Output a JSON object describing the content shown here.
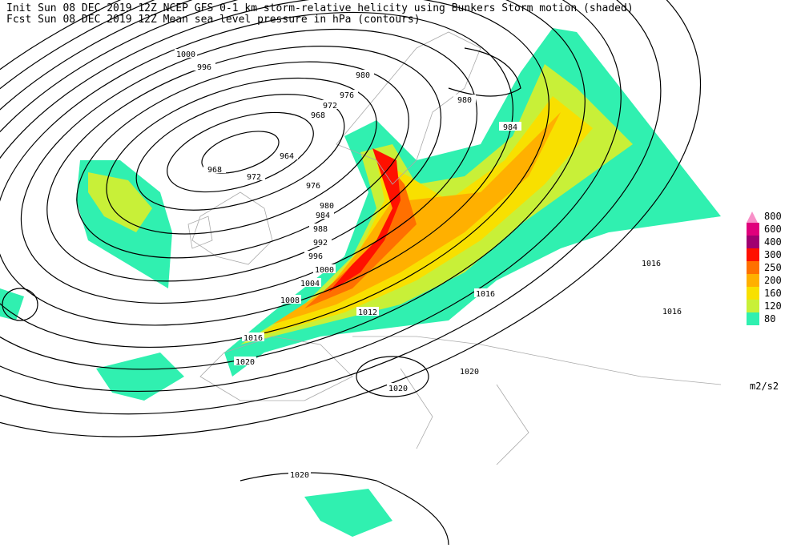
{
  "header": {
    "line1": "Init  Sun 08 DEC 2019 12Z  NCEP GFS 0-1 km storm-relative helicity using Bunkers Storm motion (shaded)",
    "line2": "Fcst Sun 08 DEC 2019 12Z  Mean sea level pressure in hPa (contours)"
  },
  "legend": {
    "units": "m2/s2",
    "levels": [
      {
        "label": "800",
        "color": "#f890c8"
      },
      {
        "label": "600",
        "color": "#e0007c"
      },
      {
        "label": "400",
        "color": "#a00070"
      },
      {
        "label": "300",
        "color": "#ff1000"
      },
      {
        "label": "250",
        "color": "#ff7000"
      },
      {
        "label": "200",
        "color": "#ffb000"
      },
      {
        "label": "160",
        "color": "#f8e000"
      },
      {
        "label": "120",
        "color": "#c8f038"
      },
      {
        "label": "80",
        "color": "#30f0b0"
      }
    ]
  },
  "contour_labels": [
    "1000",
    "996",
    "980",
    "976",
    "972",
    "968",
    "964",
    "968",
    "972",
    "976",
    "980",
    "984",
    "988",
    "992",
    "996",
    "1000",
    "1004",
    "1008",
    "1012",
    "1016",
    "1020",
    "1020",
    "1020",
    "1016",
    "1016",
    "1016",
    "984",
    "980",
    "1020"
  ]
}
